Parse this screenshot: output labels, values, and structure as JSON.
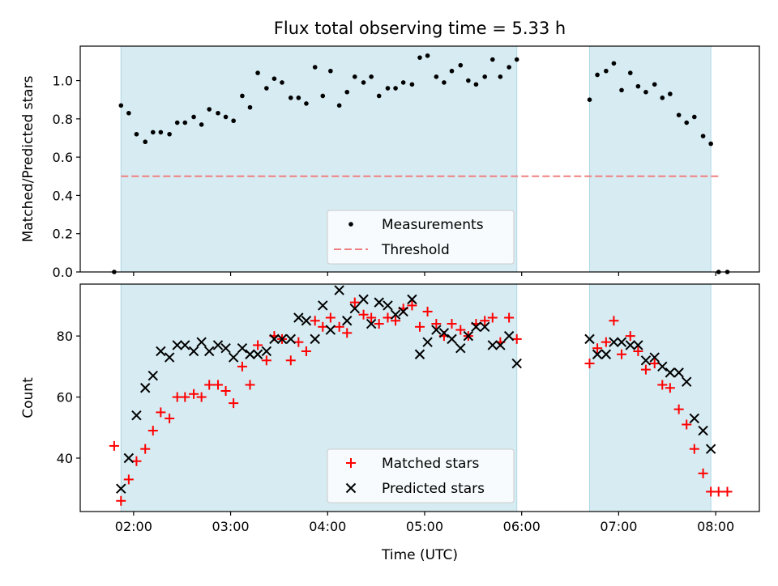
{
  "chart_data": {
    "title": "Flux total observing time = 5.33 h",
    "xlabel": "Time (UTC)",
    "x_unit": "hours UTC",
    "xlim": [
      1.45,
      8.45
    ],
    "x_ticks": [
      {
        "value": 2,
        "label": "02:00"
      },
      {
        "value": 3,
        "label": "03:00"
      },
      {
        "value": 4,
        "label": "04:00"
      },
      {
        "value": 5,
        "label": "05:00"
      },
      {
        "value": 6,
        "label": "06:00"
      },
      {
        "value": 7,
        "label": "07:00"
      },
      {
        "value": 8,
        "label": "08:00"
      }
    ],
    "shaded_intervals": [
      [
        1.87,
        5.95
      ],
      [
        6.7,
        7.95
      ]
    ],
    "shade_color": "#add8e6",
    "panels": [
      {
        "type": "scatter",
        "ylabel": "Matched/Predicted stars",
        "ylim": [
          0,
          1.18
        ],
        "y_ticks": [
          0.0,
          0.2,
          0.4,
          0.6,
          0.8,
          1.0
        ],
        "y_tick_labels": [
          "0.0",
          "0.2",
          "0.4",
          "0.6",
          "0.8",
          "1.0"
        ],
        "legend_position": "lower-center",
        "series": [
          {
            "name": "Measurements",
            "marker": "dot",
            "color": "#000000",
            "x": [
              1.8,
              1.87,
              1.95,
              2.03,
              2.12,
              2.2,
              2.28,
              2.37,
              2.45,
              2.53,
              2.62,
              2.7,
              2.78,
              2.87,
              2.95,
              3.03,
              3.12,
              3.2,
              3.28,
              3.37,
              3.45,
              3.53,
              3.62,
              3.7,
              3.78,
              3.87,
              3.95,
              4.03,
              4.12,
              4.2,
              4.28,
              4.37,
              4.45,
              4.53,
              4.62,
              4.7,
              4.78,
              4.87,
              4.95,
              5.03,
              5.12,
              5.2,
              5.28,
              5.37,
              5.45,
              5.53,
              5.62,
              5.7,
              5.78,
              5.87,
              5.95,
              6.7,
              6.78,
              6.87,
              6.95,
              7.03,
              7.12,
              7.2,
              7.28,
              7.37,
              7.45,
              7.53,
              7.62,
              7.7,
              7.78,
              7.87,
              7.95,
              8.03,
              8.12
            ],
            "y": [
              0.0,
              0.87,
              0.83,
              0.72,
              0.68,
              0.73,
              0.73,
              0.72,
              0.78,
              0.78,
              0.81,
              0.77,
              0.85,
              0.83,
              0.81,
              0.79,
              0.92,
              0.86,
              1.04,
              0.96,
              1.01,
              0.99,
              0.91,
              0.91,
              0.88,
              1.07,
              0.92,
              1.05,
              0.87,
              0.94,
              1.02,
              0.99,
              1.02,
              0.92,
              0.96,
              0.96,
              0.99,
              0.98,
              1.12,
              1.13,
              1.02,
              0.99,
              1.05,
              1.08,
              1.0,
              0.98,
              1.02,
              1.11,
              1.02,
              1.07,
              1.11,
              0.9,
              1.03,
              1.05,
              1.09,
              0.95,
              1.04,
              0.97,
              0.94,
              0.98,
              0.91,
              0.93,
              0.82,
              0.78,
              0.81,
              0.71,
              0.67,
              0.0,
              0.0
            ]
          },
          {
            "name": "Threshold",
            "marker": "dashed-line",
            "color": "#f08080",
            "x": [
              1.87,
              8.05
            ],
            "y": [
              0.5,
              0.5
            ]
          }
        ]
      },
      {
        "type": "scatter",
        "ylabel": "Count",
        "ylim": [
          22.5,
          97
        ],
        "y_ticks": [
          40,
          60,
          80
        ],
        "y_tick_labels": [
          "40",
          "60",
          "80"
        ],
        "legend_position": "lower-center",
        "series": [
          {
            "name": "Matched stars",
            "marker": "plus",
            "color": "#ff0000",
            "x": [
              1.8,
              1.87,
              1.95,
              2.03,
              2.12,
              2.2,
              2.28,
              2.37,
              2.45,
              2.53,
              2.62,
              2.7,
              2.78,
              2.87,
              2.95,
              3.03,
              3.12,
              3.2,
              3.28,
              3.37,
              3.45,
              3.53,
              3.62,
              3.7,
              3.78,
              3.87,
              3.95,
              4.03,
              4.12,
              4.2,
              4.28,
              4.37,
              4.45,
              4.53,
              4.62,
              4.7,
              4.78,
              4.87,
              4.95,
              5.03,
              5.12,
              5.2,
              5.28,
              5.37,
              5.45,
              5.53,
              5.62,
              5.7,
              5.78,
              5.87,
              5.95,
              6.7,
              6.78,
              6.87,
              6.95,
              7.03,
              7.12,
              7.2,
              7.28,
              7.37,
              7.45,
              7.53,
              7.62,
              7.7,
              7.78,
              7.87,
              7.95,
              8.03,
              8.12
            ],
            "y": [
              44,
              26,
              33,
              39,
              43,
              49,
              55,
              53,
              60,
              60,
              61,
              60,
              64,
              64,
              62,
              58,
              70,
              64,
              77,
              72,
              80,
              79,
              72,
              78,
              75,
              85,
              83,
              86,
              83,
              81,
              91,
              87,
              86,
              84,
              86,
              85,
              89,
              90,
              83,
              88,
              84,
              80,
              84,
              82,
              80,
              84,
              85,
              86,
              78,
              86,
              79,
              71,
              76,
              78,
              85,
              74,
              80,
              75,
              69,
              71,
              64,
              63,
              56,
              51,
              43,
              35,
              29,
              29,
              29
            ]
          },
          {
            "name": "Predicted stars",
            "marker": "cross",
            "color": "#000000",
            "x": [
              1.87,
              1.95,
              2.03,
              2.12,
              2.2,
              2.28,
              2.37,
              2.45,
              2.53,
              2.62,
              2.7,
              2.78,
              2.87,
              2.95,
              3.03,
              3.12,
              3.2,
              3.28,
              3.37,
              3.45,
              3.53,
              3.62,
              3.7,
              3.78,
              3.87,
              3.95,
              4.03,
              4.12,
              4.2,
              4.28,
              4.37,
              4.45,
              4.53,
              4.62,
              4.7,
              4.78,
              4.87,
              4.95,
              5.03,
              5.12,
              5.2,
              5.28,
              5.37,
              5.45,
              5.53,
              5.62,
              5.7,
              5.78,
              5.87,
              5.95,
              6.7,
              6.78,
              6.87,
              6.95,
              7.03,
              7.12,
              7.2,
              7.28,
              7.37,
              7.45,
              7.53,
              7.62,
              7.7,
              7.78,
              7.87,
              7.95
            ],
            "y": [
              30,
              40,
              54,
              63,
              67,
              75,
              73,
              77,
              77,
              75,
              78,
              75,
              77,
              76,
              73,
              76,
              74,
              74,
              75,
              79,
              79,
              79,
              86,
              85,
              79,
              90,
              82,
              95,
              85,
              89,
              92,
              84,
              91,
              90,
              87,
              88,
              92,
              74,
              78,
              82,
              81,
              79,
              76,
              80,
              83,
              83,
              77,
              77,
              80,
              71,
              79,
              74,
              74,
              78,
              78,
              77,
              77,
              72,
              73,
              70,
              68,
              68,
              65,
              53,
              49,
              43
            ]
          }
        ]
      }
    ]
  }
}
